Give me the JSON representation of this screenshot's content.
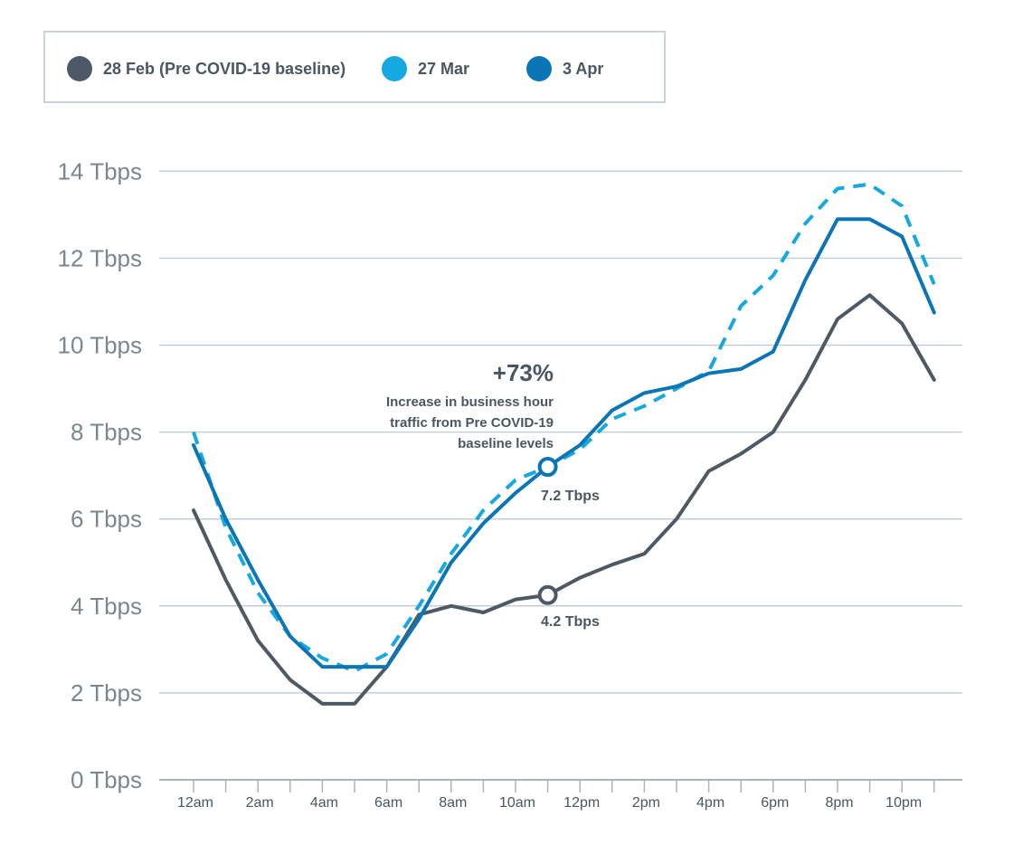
{
  "legend": [
    {
      "label": "28 Feb (Pre COVID-19 baseline)",
      "color": "#4d5a66"
    },
    {
      "label": "27 Mar",
      "color": "#16a9e1"
    },
    {
      "label": "3 Apr",
      "color": "#0b75b5"
    }
  ],
  "annotation": {
    "headline": "+73%",
    "lines": [
      "Increase in business hour",
      "traffic from Pre COVID-19",
      "baseline levels"
    ]
  },
  "point_labels": [
    "7.2 Tbps",
    "4.2 Tbps"
  ],
  "chart_data": {
    "type": "line",
    "x": [
      0,
      1,
      2,
      3,
      4,
      5,
      6,
      7,
      8,
      9,
      10,
      11,
      12,
      13,
      14,
      15,
      16,
      17,
      18,
      19,
      20,
      21,
      22,
      23
    ],
    "xticks": [
      {
        "x": 0,
        "label": "12am"
      },
      {
        "x": 2,
        "label": "2am"
      },
      {
        "x": 4,
        "label": "4am"
      },
      {
        "x": 6,
        "label": "6am"
      },
      {
        "x": 8,
        "label": "8am"
      },
      {
        "x": 10,
        "label": "10am"
      },
      {
        "x": 12,
        "label": "12pm"
      },
      {
        "x": 14,
        "label": "2pm"
      },
      {
        "x": 16,
        "label": "4pm"
      },
      {
        "x": 18,
        "label": "6pm"
      },
      {
        "x": 20,
        "label": "8pm"
      },
      {
        "x": 22,
        "label": "10pm"
      }
    ],
    "yticks": [
      "0 Tbps",
      "2 Tbps",
      "4 Tbps",
      "6 Tbps",
      "8 Tbps",
      "10 Tbps",
      "12 Tbps",
      "14 Tbps"
    ],
    "ylim": [
      0,
      14
    ],
    "grid": true,
    "series": [
      {
        "name": "28 Feb (Pre COVID-19 baseline)",
        "style": "solid",
        "color": "#4d5a66",
        "values": [
          6.2,
          4.6,
          3.2,
          2.3,
          1.75,
          1.75,
          2.6,
          3.8,
          4.0,
          3.85,
          4.15,
          4.25,
          4.65,
          4.95,
          5.2,
          6.0,
          7.1,
          7.5,
          8.0,
          9.2,
          10.6,
          11.15,
          10.5,
          9.2
        ]
      },
      {
        "name": "27 Mar",
        "style": "dashed",
        "color": "#16a9e1",
        "values": [
          8.0,
          5.8,
          4.3,
          3.3,
          2.8,
          2.5,
          2.9,
          4.0,
          5.2,
          6.2,
          6.9,
          7.2,
          7.6,
          8.3,
          8.6,
          9.0,
          9.4,
          10.9,
          11.6,
          12.8,
          13.6,
          13.7,
          13.2,
          11.4
        ]
      },
      {
        "name": "3 Apr",
        "style": "solid",
        "color": "#0b75b5",
        "values": [
          7.7,
          6.0,
          4.6,
          3.3,
          2.6,
          2.6,
          2.6,
          3.7,
          5.0,
          5.9,
          6.6,
          7.2,
          7.7,
          8.5,
          8.9,
          9.05,
          9.35,
          9.45,
          9.85,
          11.5,
          12.9,
          12.9,
          12.5,
          10.75
        ]
      }
    ],
    "markers": [
      {
        "series": 2,
        "x": 11,
        "y": 7.2,
        "label": "7.2 Tbps"
      },
      {
        "series": 0,
        "x": 11,
        "y": 4.25,
        "label": "4.2 Tbps"
      }
    ]
  }
}
